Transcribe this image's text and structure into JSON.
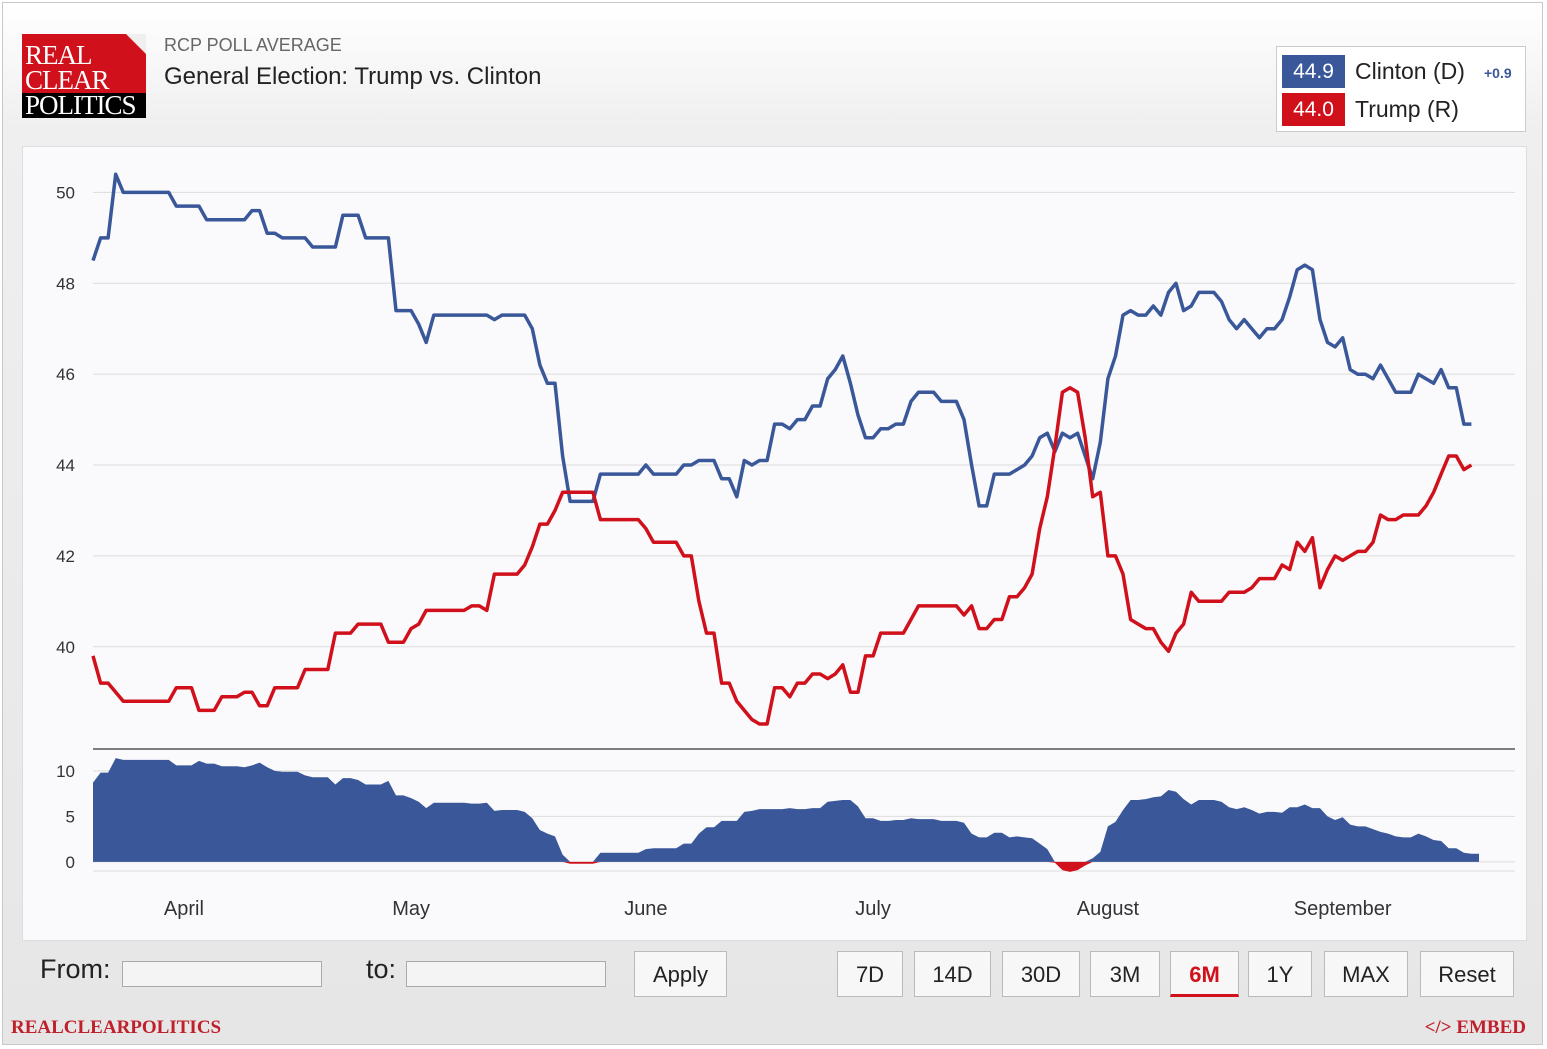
{
  "header": {
    "logo_lines": [
      "REAL",
      "CLEAR",
      "POLITICS"
    ],
    "subtitle": "RCP POLL AVERAGE",
    "title": "General Election: Trump vs. Clinton"
  },
  "legend": [
    {
      "value": "44.9",
      "name": "Clinton (D)",
      "change": "+0.9",
      "color": "#3a5899"
    },
    {
      "value": "44.0",
      "name": "Trump (R)",
      "change": "",
      "color": "#d0111b"
    }
  ],
  "chart_data": {
    "type": "line",
    "title": "General Election: Trump vs. Clinton",
    "xlabel": "",
    "ylabel": "",
    "ylim": [
      37.75,
      51
    ],
    "yticks": [
      "40",
      "42",
      "44",
      "46",
      "48",
      "50"
    ],
    "spread_ylim": [
      -1,
      12.4
    ],
    "spread_yticks": [
      "0",
      "5",
      "10"
    ],
    "x_labels": [
      {
        "label": "April",
        "day": 13
      },
      {
        "label": "May",
        "day": 43
      },
      {
        "label": "June",
        "day": 74
      },
      {
        "label": "July",
        "day": 104
      },
      {
        "label": "August",
        "day": 135
      },
      {
        "label": "September",
        "day": 166
      }
    ],
    "x_range": [
      1,
      184
    ],
    "series": [
      {
        "name": "Clinton (D)",
        "color": "#3a5899",
        "points": [
          [
            1,
            48.5
          ],
          [
            2,
            49
          ],
          [
            3,
            49
          ],
          [
            4,
            50.4
          ],
          [
            5,
            50
          ],
          [
            11,
            50
          ],
          [
            12,
            49.7
          ],
          [
            15,
            49.7
          ],
          [
            16,
            49.4
          ],
          [
            21,
            49.4
          ],
          [
            22,
            49.6
          ],
          [
            23,
            49.6
          ],
          [
            24,
            49.1
          ],
          [
            25,
            49.1
          ],
          [
            26,
            49
          ],
          [
            29,
            49
          ],
          [
            30,
            48.8
          ],
          [
            33,
            48.8
          ],
          [
            34,
            49.5
          ],
          [
            36,
            49.5
          ],
          [
            37,
            49
          ],
          [
            40,
            49
          ],
          [
            41,
            47.4
          ],
          [
            43,
            47.4
          ],
          [
            44,
            47.1
          ],
          [
            45,
            46.7
          ],
          [
            46,
            47.3
          ],
          [
            53,
            47.3
          ],
          [
            54,
            47.2
          ],
          [
            55,
            47.3
          ],
          [
            58,
            47.3
          ],
          [
            59,
            47
          ],
          [
            60,
            46.2
          ],
          [
            61,
            45.8
          ],
          [
            62,
            45.8
          ],
          [
            63,
            44.2
          ],
          [
            64,
            43.2
          ],
          [
            67,
            43.2
          ],
          [
            68,
            43.8
          ],
          [
            73,
            43.8
          ],
          [
            74,
            44
          ],
          [
            75,
            43.8
          ],
          [
            78,
            43.8
          ],
          [
            79,
            44
          ],
          [
            80,
            44
          ],
          [
            81,
            44.1
          ],
          [
            83,
            44.1
          ],
          [
            84,
            43.7
          ],
          [
            85,
            43.7
          ],
          [
            86,
            43.3
          ],
          [
            87,
            44.1
          ],
          [
            88,
            44
          ],
          [
            89,
            44.1
          ],
          [
            90,
            44.1
          ],
          [
            91,
            44.9
          ],
          [
            92,
            44.9
          ],
          [
            93,
            44.8
          ],
          [
            94,
            45
          ],
          [
            95,
            45
          ],
          [
            96,
            45.3
          ],
          [
            97,
            45.3
          ],
          [
            98,
            45.9
          ],
          [
            99,
            46.1
          ],
          [
            100,
            46.4
          ],
          [
            101,
            45.8
          ],
          [
            102,
            45.1
          ],
          [
            103,
            44.6
          ],
          [
            104,
            44.6
          ],
          [
            105,
            44.8
          ],
          [
            106,
            44.8
          ],
          [
            107,
            44.9
          ],
          [
            108,
            44.9
          ],
          [
            109,
            45.4
          ],
          [
            110,
            45.6
          ],
          [
            112,
            45.6
          ],
          [
            113,
            45.4
          ],
          [
            115,
            45.4
          ],
          [
            116,
            45
          ],
          [
            117,
            44
          ],
          [
            118,
            43.1
          ],
          [
            119,
            43.1
          ],
          [
            120,
            43.8
          ],
          [
            122,
            43.8
          ],
          [
            123,
            43.9
          ],
          [
            124,
            44
          ],
          [
            125,
            44.2
          ],
          [
            126,
            44.6
          ],
          [
            127,
            44.7
          ],
          [
            128,
            44.3
          ],
          [
            129,
            44.7
          ],
          [
            130,
            44.6
          ],
          [
            131,
            44.7
          ],
          [
            132,
            44.2
          ],
          [
            133,
            43.7
          ],
          [
            134,
            44.5
          ],
          [
            135,
            45.9
          ],
          [
            136,
            46.4
          ],
          [
            137,
            47.3
          ],
          [
            138,
            47.4
          ],
          [
            139,
            47.3
          ],
          [
            140,
            47.3
          ],
          [
            141,
            47.5
          ],
          [
            142,
            47.3
          ],
          [
            143,
            47.8
          ],
          [
            144,
            48
          ],
          [
            145,
            47.4
          ],
          [
            146,
            47.5
          ],
          [
            147,
            47.8
          ],
          [
            149,
            47.8
          ],
          [
            150,
            47.6
          ],
          [
            151,
            47.2
          ],
          [
            152,
            47
          ],
          [
            153,
            47.2
          ],
          [
            154,
            47
          ],
          [
            155,
            46.8
          ],
          [
            156,
            47
          ],
          [
            157,
            47
          ],
          [
            158,
            47.2
          ],
          [
            159,
            47.7
          ],
          [
            160,
            48.3
          ],
          [
            161,
            48.4
          ],
          [
            162,
            48.3
          ],
          [
            163,
            47.2
          ],
          [
            164,
            46.7
          ],
          [
            165,
            46.6
          ],
          [
            166,
            46.8
          ],
          [
            167,
            46.1
          ],
          [
            168,
            46
          ],
          [
            169,
            46
          ],
          [
            170,
            45.9
          ],
          [
            171,
            46.2
          ],
          [
            172,
            45.9
          ],
          [
            173,
            45.6
          ],
          [
            175,
            45.6
          ],
          [
            176,
            46
          ],
          [
            178,
            45.8
          ],
          [
            179,
            46.1
          ],
          [
            180,
            45.7
          ],
          [
            181,
            45.7
          ],
          [
            182,
            44.9
          ],
          [
            183,
            44.9
          ]
        ]
      },
      {
        "name": "Trump (R)",
        "color": "#d0111b",
        "points": [
          [
            1,
            39.8
          ],
          [
            2,
            39.2
          ],
          [
            3,
            39.2
          ],
          [
            5,
            38.8
          ],
          [
            11,
            38.8
          ],
          [
            12,
            39.1
          ],
          [
            14,
            39.1
          ],
          [
            15,
            38.6
          ],
          [
            17,
            38.6
          ],
          [
            18,
            38.9
          ],
          [
            20,
            38.9
          ],
          [
            21,
            39
          ],
          [
            22,
            39
          ],
          [
            23,
            38.7
          ],
          [
            24,
            38.7
          ],
          [
            25,
            39.1
          ],
          [
            28,
            39.1
          ],
          [
            29,
            39.5
          ],
          [
            32,
            39.5
          ],
          [
            33,
            40.3
          ],
          [
            35,
            40.3
          ],
          [
            36,
            40.5
          ],
          [
            39,
            40.5
          ],
          [
            40,
            40.1
          ],
          [
            42,
            40.1
          ],
          [
            43,
            40.4
          ],
          [
            44,
            40.5
          ],
          [
            45,
            40.8
          ],
          [
            50,
            40.8
          ],
          [
            51,
            40.9
          ],
          [
            52,
            40.9
          ],
          [
            53,
            40.8
          ],
          [
            54,
            41.6
          ],
          [
            57,
            41.6
          ],
          [
            58,
            41.8
          ],
          [
            59,
            42.2
          ],
          [
            60,
            42.7
          ],
          [
            61,
            42.7
          ],
          [
            62,
            43
          ],
          [
            63,
            43.4
          ],
          [
            67,
            43.4
          ],
          [
            68,
            42.8
          ],
          [
            73,
            42.8
          ],
          [
            74,
            42.6
          ],
          [
            75,
            42.3
          ],
          [
            78,
            42.3
          ],
          [
            79,
            42
          ],
          [
            80,
            42
          ],
          [
            81,
            41
          ],
          [
            82,
            40.3
          ],
          [
            83,
            40.3
          ],
          [
            84,
            39.2
          ],
          [
            85,
            39.2
          ],
          [
            86,
            38.8
          ],
          [
            87,
            38.6
          ],
          [
            88,
            38.4
          ],
          [
            89,
            38.3
          ],
          [
            90,
            38.3
          ],
          [
            91,
            39.1
          ],
          [
            92,
            39.1
          ],
          [
            93,
            38.9
          ],
          [
            94,
            39.2
          ],
          [
            95,
            39.2
          ],
          [
            96,
            39.4
          ],
          [
            97,
            39.4
          ],
          [
            98,
            39.3
          ],
          [
            99,
            39.4
          ],
          [
            100,
            39.6
          ],
          [
            101,
            39
          ],
          [
            102,
            39
          ],
          [
            103,
            39.8
          ],
          [
            104,
            39.8
          ],
          [
            105,
            40.3
          ],
          [
            108,
            40.3
          ],
          [
            109,
            40.6
          ],
          [
            110,
            40.9
          ],
          [
            115,
            40.9
          ],
          [
            116,
            40.7
          ],
          [
            117,
            40.9
          ],
          [
            118,
            40.4
          ],
          [
            119,
            40.4
          ],
          [
            120,
            40.6
          ],
          [
            121,
            40.6
          ],
          [
            122,
            41.1
          ],
          [
            123,
            41.1
          ],
          [
            124,
            41.3
          ],
          [
            125,
            41.6
          ],
          [
            126,
            42.6
          ],
          [
            127,
            43.3
          ],
          [
            128,
            44.4
          ],
          [
            129,
            45.6
          ],
          [
            130,
            45.7
          ],
          [
            131,
            45.6
          ],
          [
            132,
            44.6
          ],
          [
            133,
            43.3
          ],
          [
            134,
            43.4
          ],
          [
            135,
            42
          ],
          [
            136,
            42
          ],
          [
            137,
            41.6
          ],
          [
            138,
            40.6
          ],
          [
            139,
            40.5
          ],
          [
            140,
            40.4
          ],
          [
            141,
            40.4
          ],
          [
            142,
            40.1
          ],
          [
            143,
            39.9
          ],
          [
            144,
            40.3
          ],
          [
            145,
            40.5
          ],
          [
            146,
            41.2
          ],
          [
            147,
            41
          ],
          [
            150,
            41
          ],
          [
            151,
            41.2
          ],
          [
            153,
            41.2
          ],
          [
            154,
            41.3
          ],
          [
            155,
            41.5
          ],
          [
            157,
            41.5
          ],
          [
            158,
            41.8
          ],
          [
            159,
            41.7
          ],
          [
            160,
            42.3
          ],
          [
            161,
            42.1
          ],
          [
            162,
            42.4
          ],
          [
            163,
            41.3
          ],
          [
            164,
            41.7
          ],
          [
            165,
            42
          ],
          [
            166,
            41.9
          ],
          [
            167,
            42
          ],
          [
            168,
            42.1
          ],
          [
            169,
            42.1
          ],
          [
            170,
            42.3
          ],
          [
            171,
            42.9
          ],
          [
            172,
            42.8
          ],
          [
            173,
            42.8
          ],
          [
            174,
            42.9
          ],
          [
            176,
            42.9
          ],
          [
            177,
            43.1
          ],
          [
            178,
            43.4
          ],
          [
            179,
            43.8
          ],
          [
            180,
            44.2
          ],
          [
            181,
            44.2
          ],
          [
            182,
            43.9
          ],
          [
            183,
            44
          ]
        ]
      }
    ]
  },
  "controls": {
    "from_label": "From:",
    "to_label": "to:",
    "apply_label": "Apply",
    "range_buttons": [
      "7D",
      "14D",
      "30D",
      "3M",
      "6M",
      "1Y",
      "MAX",
      "Reset"
    ],
    "active_range": "6M"
  },
  "footer": {
    "brand": "REALCLEARPOLITICS",
    "embed": "</> EMBED"
  }
}
